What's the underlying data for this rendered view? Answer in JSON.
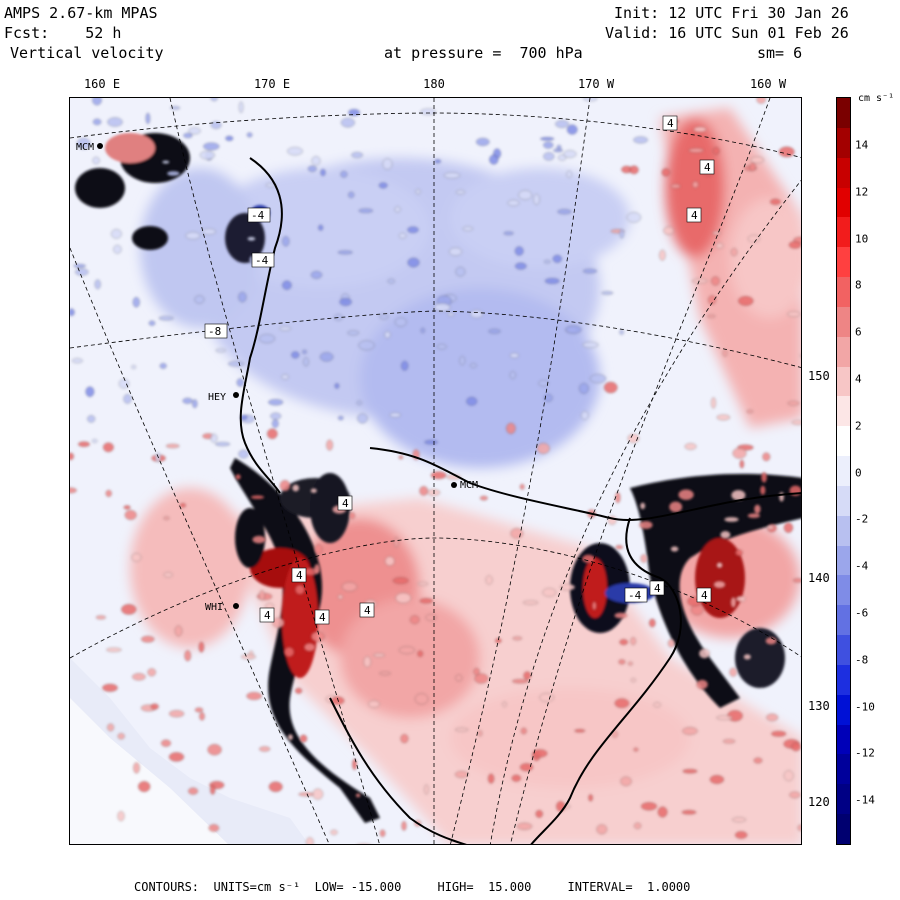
{
  "header": {
    "model": "AMPS 2.67-km MPAS",
    "init_label": "Init:",
    "init_value": "12 UTC Fri 30 Jan 26",
    "fcst_label": "Fcst:",
    "fcst_value": "52 h",
    "valid_label": "Valid:",
    "valid_value": "16 UTC Sun 01 Feb 26",
    "field": "Vertical velocity",
    "level_prefix": "at pressure =",
    "level_value": "700 hPa",
    "smoothing": "sm= 6"
  },
  "map": {
    "longitude_labels": [
      "160 E",
      "170 E",
      "180",
      "170 W",
      "160 W"
    ],
    "latitude_labels": [
      "150 W",
      "140 W",
      "130 W",
      "120 W"
    ],
    "station_labels": [
      "MCM",
      "HEY",
      "MCM",
      "WHI"
    ],
    "contour_labels": [
      "4",
      "4",
      "4",
      "4",
      "4",
      "-4",
      "-4",
      "-8",
      "4",
      "4",
      "4",
      "4",
      "4",
      "-4"
    ],
    "colors": {
      "land_dark": "#0a0a14",
      "neutral": "#f0f2fc"
    }
  },
  "colorbar": {
    "unit": "cm s⁻¹",
    "ticks": [
      "14",
      "12",
      "10",
      "8",
      "6",
      "4",
      "2",
      "0",
      "-2",
      "-4",
      "-6",
      "-8",
      "-10",
      "-12",
      "-14"
    ],
    "colors": [
      "#7a0000",
      "#a30000",
      "#c80000",
      "#e10000",
      "#f21c1c",
      "#ff4040",
      "#f26262",
      "#ee8585",
      "#f2a6a6",
      "#f7c6c6",
      "#fce6e6",
      "#ffffff",
      "#eceffc",
      "#d6dbf7",
      "#b8c0f0",
      "#9ba6eb",
      "#7f8ce7",
      "#6271e3",
      "#3f50e0",
      "#1d2fe0",
      "#0011d6",
      "#0000b8",
      "#00009b",
      "#000085",
      "#000070"
    ]
  },
  "footer": {
    "contours_label": "CONTOURS:",
    "units_label": "UNITS=cm s⁻¹",
    "low_label": "LOW=",
    "low_value": "-15.000",
    "high_label": "HIGH=",
    "high_value": "15.000",
    "interval_label": "INTERVAL=",
    "interval_value": "1.0000"
  }
}
